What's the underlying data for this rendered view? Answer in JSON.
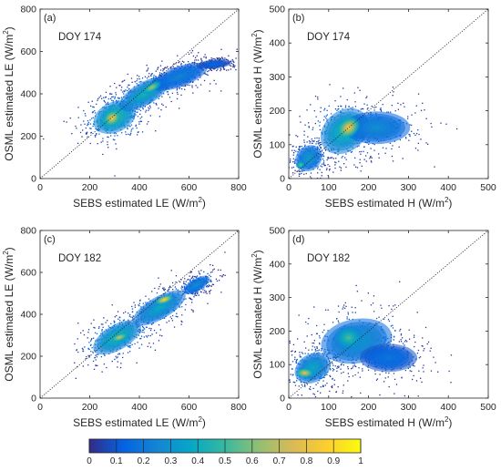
{
  "chart_data": [
    {
      "type": "scatter",
      "panel_label": "(a)",
      "annotation": "DOY 174",
      "xlabel_main": "SEBS estimated LE (W/m",
      "ylabel_main": "OSML estimated LE (W/m",
      "label_sup": "2",
      "label_close": ")",
      "xlim": [
        0,
        800
      ],
      "ylim": [
        0,
        800
      ],
      "xticks": [
        0,
        200,
        400,
        600,
        800
      ],
      "yticks": [
        0,
        200,
        400,
        600,
        800
      ],
      "reference_line": "1:1",
      "density_cloud": [
        {
          "x": 300,
          "y": 290,
          "sx": 75,
          "sy": 60,
          "rot": 25,
          "density": 0.55
        },
        {
          "x": 420,
          "y": 400,
          "sx": 95,
          "sy": 45,
          "rot": 30,
          "density": 0.45
        },
        {
          "x": 560,
          "y": 480,
          "sx": 100,
          "sy": 40,
          "rot": 20,
          "density": 0.25
        },
        {
          "x": 700,
          "y": 540,
          "sx": 60,
          "sy": 18,
          "rot": 5,
          "density": 0.15
        }
      ],
      "density_peaks": [
        {
          "x": 290,
          "y": 285,
          "sx": 30,
          "sy": 28,
          "rot": 35,
          "density": 0.9
        },
        {
          "x": 450,
          "y": 430,
          "sx": 35,
          "sy": 18,
          "rot": 30,
          "density": 0.72
        }
      ]
    },
    {
      "type": "scatter",
      "panel_label": "(b)",
      "annotation": "DOY 174",
      "xlabel_main": "SEBS estimated H (W/m",
      "ylabel_main": "OSML estimated H (W/m",
      "label_sup": "2",
      "label_close": ")",
      "xlim": [
        0,
        500
      ],
      "ylim": [
        0,
        500
      ],
      "xticks": [
        0,
        100,
        200,
        300,
        400,
        500
      ],
      "yticks": [
        0,
        100,
        200,
        300,
        400,
        500
      ],
      "reference_line": "1:1",
      "density_cloud": [
        {
          "x": 140,
          "y": 140,
          "sx": 55,
          "sy": 50,
          "rot": 40,
          "density": 0.5
        },
        {
          "x": 220,
          "y": 150,
          "sx": 70,
          "sy": 40,
          "rot": 0,
          "density": 0.3
        },
        {
          "x": 50,
          "y": 60,
          "sx": 30,
          "sy": 30,
          "rot": 40,
          "density": 0.35
        }
      ],
      "density_peaks": [
        {
          "x": 150,
          "y": 150,
          "sx": 25,
          "sy": 22,
          "rot": 40,
          "density": 0.92
        },
        {
          "x": 30,
          "y": 40,
          "sx": 10,
          "sy": 10,
          "rot": 0,
          "density": 0.6
        }
      ]
    },
    {
      "type": "scatter",
      "panel_label": "(c)",
      "annotation": "DOY 182",
      "xlabel_main": "SEBS estimated LE (W/m",
      "ylabel_main": "OSML estimated LE (W/m",
      "label_sup": "2",
      "label_close": ")",
      "xlim": [
        0,
        800
      ],
      "ylim": [
        0,
        800
      ],
      "xticks": [
        0,
        200,
        400,
        600,
        800
      ],
      "yticks": [
        0,
        200,
        400,
        600,
        800
      ],
      "reference_line": "1:1",
      "density_cloud": [
        {
          "x": 310,
          "y": 290,
          "sx": 90,
          "sy": 50,
          "rot": 30,
          "density": 0.5
        },
        {
          "x": 480,
          "y": 430,
          "sx": 100,
          "sy": 45,
          "rot": 30,
          "density": 0.4
        },
        {
          "x": 630,
          "y": 540,
          "sx": 50,
          "sy": 25,
          "rot": 30,
          "density": 0.3
        }
      ],
      "density_peaks": [
        {
          "x": 320,
          "y": 290,
          "sx": 30,
          "sy": 15,
          "rot": 20,
          "density": 0.8
        },
        {
          "x": 500,
          "y": 470,
          "sx": 30,
          "sy": 15,
          "rot": 20,
          "density": 0.95
        }
      ]
    },
    {
      "type": "scatter",
      "panel_label": "(d)",
      "annotation": "DOY 182",
      "xlabel_main": "SEBS estimated H (W/m",
      "ylabel_main": "OSML estimated H (W/m",
      "label_sup": "2",
      "label_close": ")",
      "xlim": [
        0,
        500
      ],
      "ylim": [
        0,
        500
      ],
      "xticks": [
        0,
        100,
        200,
        300,
        400,
        500
      ],
      "yticks": [
        0,
        100,
        200,
        300,
        400,
        500
      ],
      "reference_line": "1:1",
      "density_cloud": [
        {
          "x": 170,
          "y": 170,
          "sx": 75,
          "sy": 55,
          "rot": 10,
          "density": 0.35
        },
        {
          "x": 60,
          "y": 90,
          "sx": 40,
          "sy": 35,
          "rot": 30,
          "density": 0.4
        },
        {
          "x": 250,
          "y": 120,
          "sx": 60,
          "sy": 35,
          "rot": 0,
          "density": 0.2
        }
      ],
      "density_peaks": [
        {
          "x": 40,
          "y": 75,
          "sx": 18,
          "sy": 12,
          "rot": 0,
          "density": 0.85
        },
        {
          "x": 150,
          "y": 180,
          "sx": 30,
          "sy": 30,
          "rot": 0,
          "density": 0.55
        }
      ]
    }
  ],
  "colorbar": {
    "min": 0,
    "max": 1,
    "ticks": [
      0,
      0.1,
      0.2,
      0.3,
      0.4,
      0.5,
      0.6,
      0.7,
      0.8,
      0.9,
      1
    ],
    "tick_labels": [
      "0",
      "0.1",
      "0.2",
      "0.3",
      "0.4",
      "0.5",
      "0.6",
      "0.7",
      "0.8",
      "0.9",
      "1"
    ],
    "colormap": "parula",
    "stops": [
      "#352a87",
      "#0363e1",
      "#1485d4",
      "#06a7c6",
      "#38b99e",
      "#92bf73",
      "#d9ba56",
      "#fcce2e",
      "#f9fb0e"
    ]
  }
}
